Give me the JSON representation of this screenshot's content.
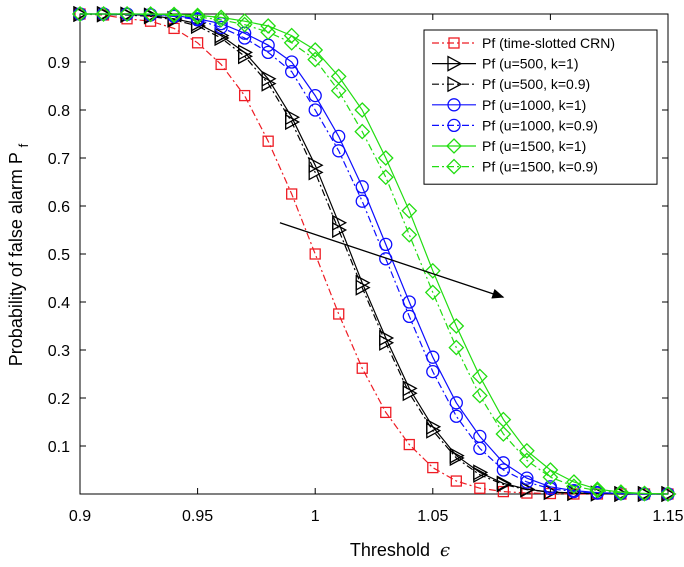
{
  "chart_data": {
    "type": "line",
    "xlabel": "Threshold",
    "xlabel_symbol": "ϵ",
    "ylabel": "Probability of false alarm P",
    "ylabel_subscript": "f",
    "xlim": [
      0.9,
      1.15
    ],
    "ylim": [
      0,
      1
    ],
    "xticks": [
      "0.9",
      "0.95",
      "1",
      "1.05",
      "1.1",
      "1.15"
    ],
    "yticks": [
      "0.1",
      "0.2",
      "0.3",
      "0.4",
      "0.5",
      "0.6",
      "0.7",
      "0.8",
      "0.9"
    ],
    "grid": false,
    "legend_position": "top-right",
    "x": [
      0.9,
      0.91,
      0.92,
      0.93,
      0.94,
      0.95,
      0.96,
      0.97,
      0.98,
      0.99,
      1.0,
      1.01,
      1.02,
      1.03,
      1.04,
      1.05,
      1.06,
      1.07,
      1.08,
      1.09,
      1.1,
      1.11,
      1.12,
      1.13,
      1.14,
      1.15
    ],
    "series": [
      {
        "name": "Pf (time-slotted CRN)",
        "color": "#ee1c24",
        "marker": "square",
        "dash": "dashdot",
        "values": [
          1.0,
          0.998,
          0.99,
          0.985,
          0.97,
          0.94,
          0.895,
          0.83,
          0.735,
          0.625,
          0.5,
          0.375,
          0.262,
          0.17,
          0.103,
          0.055,
          0.027,
          0.012,
          0.005,
          0.002,
          0.001,
          0.0,
          0.0,
          0.0,
          0.0,
          0.0
        ]
      },
      {
        "name": "Pf (u=500, k=1)",
        "color": "#000000",
        "marker": "triangle-right",
        "dash": "solid",
        "values": [
          1.0,
          1.0,
          0.999,
          0.997,
          0.99,
          0.98,
          0.955,
          0.92,
          0.865,
          0.785,
          0.685,
          0.565,
          0.44,
          0.325,
          0.22,
          0.14,
          0.08,
          0.045,
          0.022,
          0.01,
          0.004,
          0.002,
          0.001,
          0.0,
          0.0,
          0.0
        ]
      },
      {
        "name": "Pf (u=500, k=0.9)",
        "color": "#000000",
        "marker": "triangle-right",
        "dash": "dashdot",
        "values": [
          1.0,
          0.999,
          0.998,
          0.995,
          0.988,
          0.975,
          0.95,
          0.912,
          0.855,
          0.775,
          0.67,
          0.55,
          0.43,
          0.315,
          0.21,
          0.132,
          0.075,
          0.04,
          0.02,
          0.009,
          0.004,
          0.002,
          0.001,
          0.0,
          0.0,
          0.0
        ]
      },
      {
        "name": "Pf (u=1000, k=1)",
        "color": "#0d0dff",
        "marker": "circle",
        "dash": "solid",
        "values": [
          1.0,
          1.0,
          1.0,
          0.999,
          0.997,
          0.99,
          0.98,
          0.96,
          0.935,
          0.9,
          0.83,
          0.745,
          0.64,
          0.52,
          0.4,
          0.285,
          0.19,
          0.12,
          0.065,
          0.033,
          0.015,
          0.007,
          0.003,
          0.001,
          0.0,
          0.0
        ]
      },
      {
        "name": "Pf (u=1000, k=0.9)",
        "color": "#0d0dff",
        "marker": "circle",
        "dash": "dashdot",
        "values": [
          1.0,
          1.0,
          0.999,
          0.998,
          0.995,
          0.988,
          0.972,
          0.95,
          0.92,
          0.88,
          0.8,
          0.715,
          0.61,
          0.49,
          0.37,
          0.255,
          0.162,
          0.095,
          0.05,
          0.025,
          0.011,
          0.005,
          0.002,
          0.001,
          0.0,
          0.0
        ]
      },
      {
        "name": "Pf (u=1500, k=1)",
        "color": "#22dd11",
        "marker": "diamond",
        "dash": "solid",
        "values": [
          1.0,
          1.0,
          1.0,
          1.0,
          0.999,
          0.997,
          0.993,
          0.985,
          0.975,
          0.955,
          0.925,
          0.87,
          0.8,
          0.7,
          0.59,
          0.465,
          0.35,
          0.245,
          0.155,
          0.09,
          0.05,
          0.025,
          0.01,
          0.004,
          0.001,
          0.0
        ]
      },
      {
        "name": "Pf (u=1500, k=0.9)",
        "color": "#22dd11",
        "marker": "diamond",
        "dash": "dashdot",
        "values": [
          1.0,
          1.0,
          1.0,
          0.999,
          0.997,
          0.994,
          0.988,
          0.978,
          0.962,
          0.94,
          0.905,
          0.84,
          0.755,
          0.66,
          0.54,
          0.42,
          0.305,
          0.205,
          0.125,
          0.07,
          0.035,
          0.016,
          0.007,
          0.002,
          0.001,
          0.0
        ]
      }
    ],
    "annotation": {
      "type": "arrow",
      "from": [
        0.985,
        0.565
      ],
      "to": [
        1.08,
        0.41
      ]
    }
  }
}
